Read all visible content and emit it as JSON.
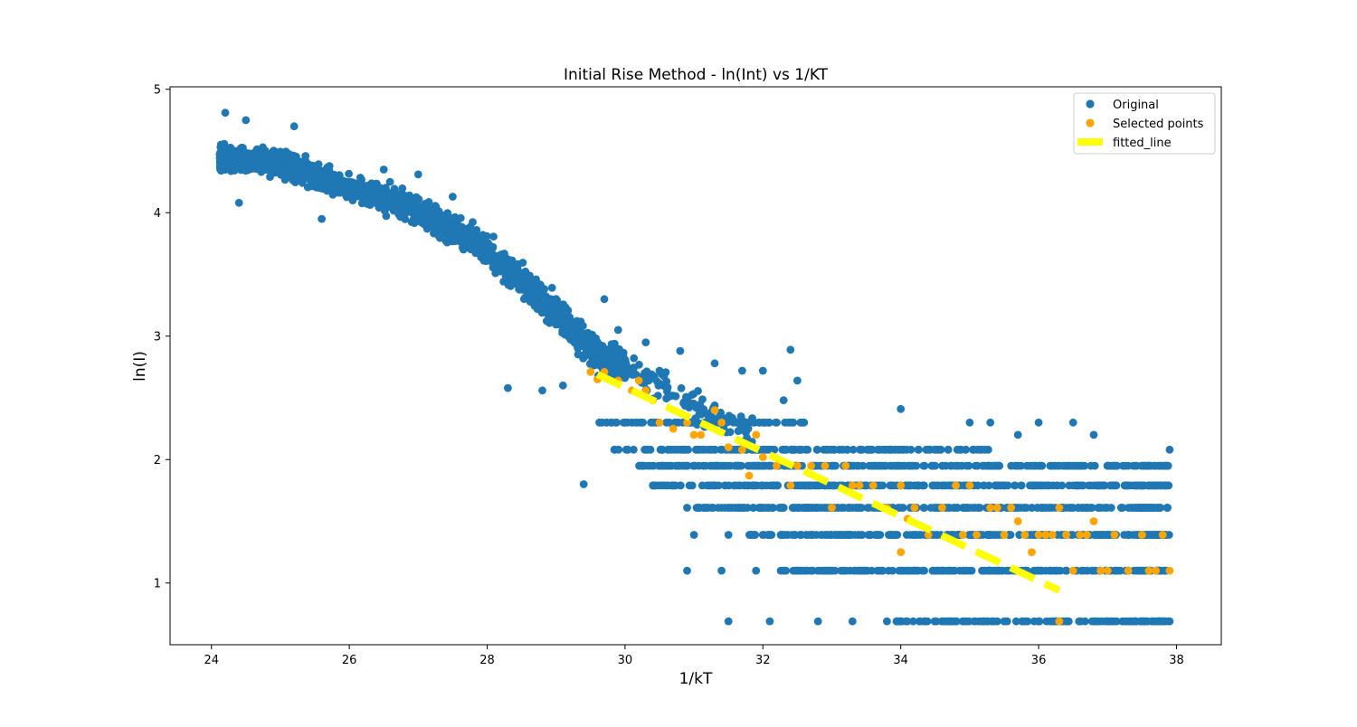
{
  "chart_data": {
    "type": "scatter",
    "title": "Initial Rise Method - ln(Int) vs 1/KT",
    "xlabel": "1/kT",
    "ylabel": "ln(I)",
    "xlim": [
      23.4,
      38.65
    ],
    "ylim": [
      0.5,
      5.02
    ],
    "xticks": [
      24,
      26,
      28,
      30,
      32,
      34,
      36,
      38
    ],
    "yticks": [
      1,
      2,
      3,
      4,
      5
    ],
    "grid": false,
    "legend_position": "top-right",
    "colors": {
      "original": "#1f77b4",
      "selected": "#ffa500",
      "fitted": "#ffff00"
    },
    "series": [
      {
        "name": "Original",
        "kind": "scatter",
        "color": "#1f77b4",
        "trend": [
          [
            24.1,
            4.45
          ],
          [
            25.0,
            4.4
          ],
          [
            26.0,
            4.2
          ],
          [
            27.0,
            4.02
          ],
          [
            28.0,
            3.7
          ],
          [
            29.0,
            3.2
          ],
          [
            29.6,
            2.85
          ],
          [
            30.0,
            2.75
          ],
          [
            31.0,
            2.45
          ],
          [
            32.0,
            2.15
          ]
        ],
        "levels": [
          2.3,
          2.08,
          1.95,
          1.79,
          1.61,
          1.39,
          1.1,
          0.69
        ],
        "points": [
          [
            24.2,
            4.81
          ],
          [
            24.5,
            4.75
          ],
          [
            25.2,
            4.7
          ],
          [
            24.4,
            4.08
          ],
          [
            25.6,
            3.95
          ],
          [
            27.0,
            4.31
          ],
          [
            27.5,
            4.13
          ],
          [
            26.5,
            4.35
          ],
          [
            28.8,
            2.56
          ],
          [
            29.1,
            2.6
          ],
          [
            28.3,
            2.58
          ],
          [
            29.4,
            1.8
          ],
          [
            32.4,
            2.89
          ],
          [
            31.3,
            2.78
          ],
          [
            30.8,
            2.88
          ],
          [
            29.9,
            3.05
          ],
          [
            30.5,
            2.72
          ],
          [
            29.7,
            3.3
          ],
          [
            30.3,
            2.95
          ],
          [
            31.7,
            2.72
          ],
          [
            32.5,
            2.64
          ],
          [
            32.0,
            2.72
          ],
          [
            32.3,
            2.48
          ],
          [
            34.0,
            2.41
          ],
          [
            35.0,
            2.3
          ],
          [
            35.3,
            2.3
          ],
          [
            36.5,
            2.3
          ],
          [
            36.8,
            2.2
          ],
          [
            36.0,
            2.3
          ],
          [
            35.7,
            2.2
          ],
          [
            37.9,
            2.08
          ],
          [
            37.3,
            1.95
          ],
          [
            35.5,
            0.69
          ],
          [
            36.2,
            0.69
          ],
          [
            33.8,
            0.69
          ],
          [
            32.8,
            0.69
          ],
          [
            31.5,
            0.69
          ],
          [
            32.1,
            0.69
          ],
          [
            33.3,
            0.69
          ],
          [
            34.5,
            0.69
          ],
          [
            37.9,
            0.69
          ],
          [
            37.0,
            0.69
          ],
          [
            30.9,
            1.1
          ],
          [
            31.4,
            1.1
          ],
          [
            31.9,
            1.1
          ],
          [
            31.5,
            1.39
          ],
          [
            31.0,
            1.39
          ],
          [
            30.9,
            1.61
          ],
          [
            31.6,
            1.61
          ]
        ]
      },
      {
        "name": "Selected points",
        "kind": "scatter",
        "color": "#ffa500",
        "points": [
          [
            29.5,
            2.71
          ],
          [
            29.7,
            2.71
          ],
          [
            29.6,
            2.65
          ],
          [
            29.9,
            2.64
          ],
          [
            30.1,
            2.56
          ],
          [
            30.2,
            2.64
          ],
          [
            30.4,
            2.48
          ],
          [
            30.3,
            2.56
          ],
          [
            30.5,
            2.3
          ],
          [
            30.7,
            2.25
          ],
          [
            30.9,
            2.3
          ],
          [
            31.0,
            2.2
          ],
          [
            31.1,
            2.2
          ],
          [
            31.3,
            2.4
          ],
          [
            31.4,
            2.3
          ],
          [
            31.5,
            2.1
          ],
          [
            31.7,
            2.08
          ],
          [
            31.8,
            1.87
          ],
          [
            31.9,
            2.2
          ],
          [
            32.0,
            2.02
          ],
          [
            32.2,
            1.95
          ],
          [
            32.4,
            1.79
          ],
          [
            32.5,
            1.95
          ],
          [
            32.7,
            1.95
          ],
          [
            32.9,
            1.95
          ],
          [
            33.0,
            1.61
          ],
          [
            33.2,
            1.95
          ],
          [
            33.3,
            1.79
          ],
          [
            33.4,
            1.79
          ],
          [
            33.6,
            1.79
          ],
          [
            33.8,
            1.61
          ],
          [
            34.0,
            1.79
          ],
          [
            34.1,
            1.52
          ],
          [
            34.2,
            1.61
          ],
          [
            34.4,
            1.39
          ],
          [
            34.6,
            1.61
          ],
          [
            34.8,
            1.79
          ],
          [
            34.9,
            1.39
          ],
          [
            35.0,
            1.79
          ],
          [
            35.1,
            1.39
          ],
          [
            35.3,
            1.61
          ],
          [
            35.4,
            1.61
          ],
          [
            35.5,
            1.39
          ],
          [
            35.6,
            1.61
          ],
          [
            35.8,
            1.39
          ],
          [
            35.9,
            1.25
          ],
          [
            36.0,
            1.39
          ],
          [
            36.1,
            1.39
          ],
          [
            36.2,
            1.39
          ],
          [
            36.3,
            1.61
          ],
          [
            36.4,
            1.39
          ],
          [
            34.0,
            1.25
          ],
          [
            35.7,
            1.5
          ],
          [
            36.3,
            0.69
          ],
          [
            36.5,
            1.1
          ],
          [
            36.8,
            1.5
          ],
          [
            36.6,
            1.39
          ],
          [
            36.7,
            1.39
          ],
          [
            36.9,
            1.1
          ],
          [
            37.0,
            1.1
          ],
          [
            37.1,
            1.39
          ],
          [
            37.3,
            1.1
          ],
          [
            37.5,
            1.39
          ],
          [
            37.6,
            1.1
          ],
          [
            37.7,
            1.1
          ],
          [
            37.8,
            1.39
          ],
          [
            37.9,
            1.1
          ]
        ]
      },
      {
        "name": "fitted_line",
        "kind": "line",
        "color": "#ffff00",
        "style": "dashed",
        "points": [
          [
            29.6,
            2.69
          ],
          [
            36.3,
            0.94
          ]
        ]
      }
    ]
  }
}
